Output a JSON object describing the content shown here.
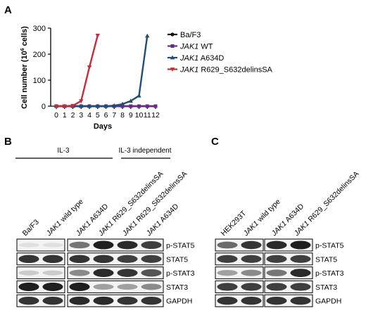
{
  "panels": {
    "a": "A",
    "b": "B",
    "c": "C"
  },
  "chart_data": {
    "type": "line",
    "xlabel": "Days",
    "ylabel": "Cell number (10",
    "ylabel_sup": "6",
    "ylabel_end": " cells)",
    "xlim": [
      0,
      12
    ],
    "ylim": [
      0,
      300
    ],
    "x_ticks": [
      "0",
      "1",
      "2",
      "3",
      "4",
      "5",
      "6",
      "7",
      "8",
      "9",
      "10",
      "11",
      "12"
    ],
    "y_ticks": [
      "0",
      "100",
      "200",
      "300"
    ],
    "grid": false,
    "legend_position": "right",
    "series": [
      {
        "name": "Ba/F3",
        "name_gene": "",
        "color": "#111111",
        "marker": "circle",
        "x": [
          0,
          1,
          2,
          3,
          4,
          5,
          6,
          7,
          8,
          9,
          10,
          11,
          12
        ],
        "y": [
          0,
          0,
          0,
          0,
          0,
          0,
          0,
          0,
          0,
          0,
          0,
          0,
          0
        ]
      },
      {
        "name": " WT",
        "name_gene": "JAK1",
        "color": "#6a2a8c",
        "marker": "square",
        "x": [
          0,
          1,
          2,
          3,
          4,
          5,
          6,
          7,
          8,
          9,
          10,
          11,
          12
        ],
        "y": [
          0,
          0,
          0,
          0,
          0,
          0,
          0,
          0,
          0,
          0,
          0,
          0,
          0
        ]
      },
      {
        "name": " A634D",
        "name_gene": "JAK1",
        "color": "#1f4e79",
        "marker": "triangle-up",
        "x": [
          0,
          1,
          2,
          3,
          4,
          5,
          6,
          7,
          8,
          9,
          10,
          11,
          12
        ],
        "y": [
          0,
          0,
          0,
          0,
          0,
          0,
          0,
          2,
          8,
          20,
          40,
          270,
          null
        ]
      },
      {
        "name": " R629_S632delinsSA",
        "name_gene": "JAK1",
        "color": "#c62b3b",
        "marker": "triangle-down",
        "x": [
          0,
          1,
          2,
          3,
          4,
          5
        ],
        "y": [
          0,
          0,
          2,
          20,
          150,
          272
        ]
      }
    ]
  },
  "blot_b": {
    "group1": "IL-3",
    "group2": "IL-3 independent",
    "lanes": [
      {
        "gene": "",
        "rest": "Ba/F3"
      },
      {
        "gene": "JAK1",
        "rest": " wild type"
      },
      {
        "gene": "JAK1",
        "rest": " A634D"
      },
      {
        "gene": "JAK1",
        "rest": " R629_S632delinsSA"
      },
      {
        "gene": "JAK1",
        "rest": " R629_S632delinsSA"
      },
      {
        "gene": "JAK1",
        "rest": " A634D"
      }
    ],
    "rows": [
      "p-STAT5",
      "STAT5",
      "p-STAT3",
      "STAT3",
      "GAPDH"
    ],
    "intensity": [
      [
        0.05,
        0.05,
        0.55,
        0.95,
        0.9,
        0.8
      ],
      [
        0.85,
        0.85,
        0.85,
        0.85,
        0.8,
        0.8
      ],
      [
        0.15,
        0.15,
        0.45,
        0.9,
        0.85,
        0.7
      ],
      [
        0.95,
        0.95,
        0.95,
        0.35,
        0.35,
        0.45
      ],
      [
        0.85,
        0.85,
        0.9,
        0.9,
        0.85,
        0.85
      ]
    ]
  },
  "blot_c": {
    "lanes": [
      {
        "gene": "",
        "rest": "HEK293T"
      },
      {
        "gene": "JAK1",
        "rest": " wild type"
      },
      {
        "gene": "JAK1",
        "rest": " A634D"
      },
      {
        "gene": "JAK1",
        "rest": " R629_S632delinsSA"
      }
    ],
    "rows": [
      "p-STAT5",
      "STAT5",
      "p-STAT3",
      "STAT3",
      "GAPDH"
    ],
    "intensity": [
      [
        0.6,
        0.85,
        0.9,
        0.95
      ],
      [
        0.8,
        0.8,
        0.8,
        0.8
      ],
      [
        0.35,
        0.45,
        0.55,
        0.9
      ],
      [
        0.8,
        0.8,
        0.8,
        0.8
      ],
      [
        0.85,
        0.85,
        0.85,
        0.85
      ]
    ]
  }
}
